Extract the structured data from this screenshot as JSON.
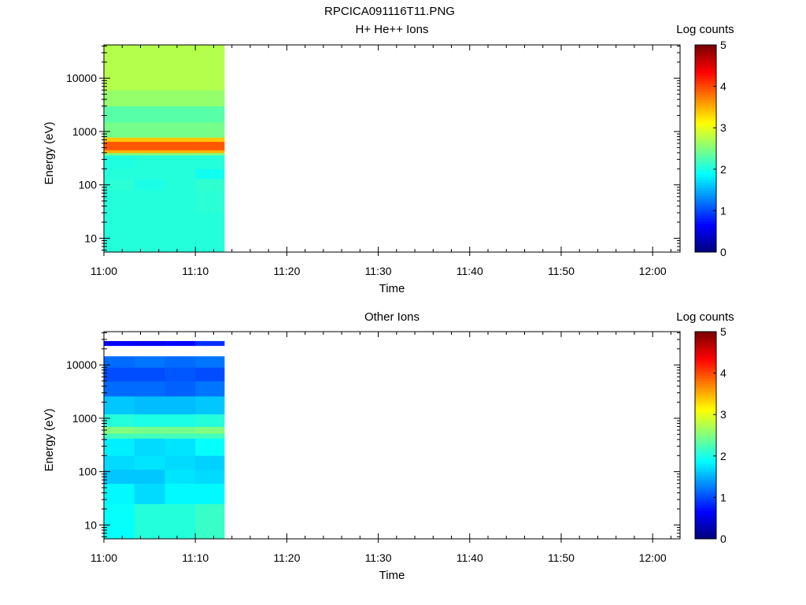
{
  "figure_title": "RPCICA091116T11.PNG",
  "chart_data": [
    {
      "type": "heatmap",
      "title": "H+ He++ Ions",
      "xlabel": "Time",
      "ylabel": "Energy (eV)",
      "yscale": "log",
      "xlim": [
        "11:00",
        "12:03"
      ],
      "ylim": [
        5.5,
        42000
      ],
      "xticks": [
        "11:00",
        "11:10",
        "11:20",
        "11:30",
        "11:40",
        "11:50",
        "12:00"
      ],
      "yticks": [
        "10",
        "100",
        "1000",
        "10000"
      ],
      "colorbar": {
        "label": "Log counts",
        "range": [
          0,
          5
        ],
        "ticks": [
          "0",
          "1",
          "2",
          "3",
          "4",
          "5"
        ],
        "colormap": "jet"
      },
      "time_bins": [
        "11:00",
        "11:03:20",
        "11:06:40",
        "11:10:00"
      ],
      "time_end": "11:13:10",
      "energy_bands": [
        {
          "e_lo": 5.5,
          "e_hi": 30,
          "values": [
            2.05,
            2.05,
            2.05,
            2.05
          ]
        },
        {
          "e_lo": 30,
          "e_hi": 80,
          "values": [
            2.05,
            2.05,
            2.05,
            2.08
          ]
        },
        {
          "e_lo": 80,
          "e_hi": 130,
          "values": [
            2.08,
            2.0,
            2.05,
            2.1
          ]
        },
        {
          "e_lo": 130,
          "e_hi": 200,
          "values": [
            2.05,
            2.05,
            2.05,
            1.95
          ]
        },
        {
          "e_lo": 200,
          "e_hi": 360,
          "values": [
            2.02,
            2.05,
            2.05,
            2.05
          ]
        },
        {
          "e_lo": 360,
          "e_hi": 400,
          "values": [
            2.5,
            2.5,
            2.5,
            2.5
          ]
        },
        {
          "e_lo": 400,
          "e_hi": 450,
          "values": [
            3.5,
            3.5,
            3.5,
            3.5
          ]
        },
        {
          "e_lo": 450,
          "e_hi": 650,
          "values": [
            3.95,
            3.95,
            3.95,
            3.95
          ]
        },
        {
          "e_lo": 650,
          "e_hi": 780,
          "values": [
            3.4,
            3.4,
            3.4,
            3.4
          ]
        },
        {
          "e_lo": 780,
          "e_hi": 1500,
          "values": [
            2.45,
            2.45,
            2.45,
            2.45
          ]
        },
        {
          "e_lo": 1500,
          "e_hi": 3000,
          "values": [
            2.3,
            2.3,
            2.3,
            2.3
          ]
        },
        {
          "e_lo": 3000,
          "e_hi": 6000,
          "values": [
            2.6,
            2.6,
            2.6,
            2.6
          ]
        },
        {
          "e_lo": 6000,
          "e_hi": 42000,
          "values": [
            2.75,
            2.75,
            2.75,
            2.75
          ]
        }
      ]
    },
    {
      "type": "heatmap",
      "title": "Other Ions",
      "xlabel": "Time",
      "ylabel": "Energy (eV)",
      "yscale": "log",
      "xlim": [
        "11:00",
        "12:03"
      ],
      "ylim": [
        5.5,
        42000
      ],
      "xticks": [
        "11:00",
        "11:10",
        "11:20",
        "11:30",
        "11:40",
        "11:50",
        "12:00"
      ],
      "yticks": [
        "10",
        "100",
        "1000",
        "10000"
      ],
      "colorbar": {
        "label": "Log counts",
        "range": [
          0,
          5
        ],
        "ticks": [
          "0",
          "1",
          "2",
          "3",
          "4",
          "5"
        ],
        "colormap": "jet"
      },
      "time_bins": [
        "11:00",
        "11:03:20",
        "11:06:40",
        "11:10:00"
      ],
      "time_end": "11:13:10",
      "energy_bands": [
        {
          "e_lo": 5.5,
          "e_hi": 25,
          "values": [
            1.9,
            2.05,
            2.05,
            2.15
          ]
        },
        {
          "e_lo": 25,
          "e_hi": 60,
          "values": [
            1.85,
            1.7,
            1.85,
            1.85
          ]
        },
        {
          "e_lo": 60,
          "e_hi": 110,
          "values": [
            1.6,
            1.6,
            1.75,
            1.7
          ]
        },
        {
          "e_lo": 110,
          "e_hi": 200,
          "values": [
            1.7,
            1.75,
            1.7,
            1.65
          ]
        },
        {
          "e_lo": 200,
          "e_hi": 420,
          "values": [
            1.8,
            1.7,
            1.75,
            1.9
          ]
        },
        {
          "e_lo": 420,
          "e_hi": 520,
          "values": [
            2.2,
            2.2,
            2.2,
            2.2
          ]
        },
        {
          "e_lo": 520,
          "e_hi": 700,
          "values": [
            2.5,
            2.45,
            2.45,
            2.5
          ]
        },
        {
          "e_lo": 700,
          "e_hi": 1200,
          "values": [
            2.05,
            2.0,
            2.0,
            2.05
          ]
        },
        {
          "e_lo": 1200,
          "e_hi": 2600,
          "values": [
            1.6,
            1.55,
            1.55,
            1.6
          ]
        },
        {
          "e_lo": 2600,
          "e_hi": 5000,
          "values": [
            1.15,
            1.15,
            1.1,
            1.2
          ]
        },
        {
          "e_lo": 5000,
          "e_hi": 9000,
          "values": [
            1.0,
            1.0,
            1.05,
            1.0
          ]
        },
        {
          "e_lo": 9000,
          "e_hi": 14500,
          "values": [
            1.15,
            1.2,
            1.15,
            1.2
          ]
        },
        {
          "e_lo": 23000,
          "e_hi": 28000,
          "values": [
            0.6,
            0.55,
            0.65,
            0.85
          ]
        }
      ]
    }
  ]
}
